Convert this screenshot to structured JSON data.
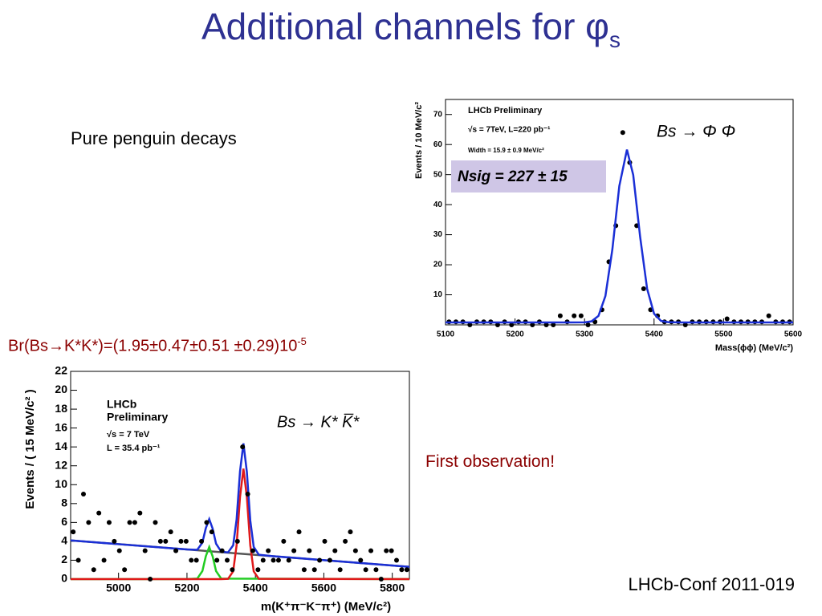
{
  "slide": {
    "title": "Additional channels for φ",
    "title_subscript": "s",
    "subtitle": "Pure penguin decays",
    "branching_ratio": "Br(Bs→K*K*)=(1.95±0.47±0.51 ±0.29)10",
    "branching_ratio_exponent": "-5",
    "note": "First observation!",
    "reference": "LHCb-Conf 2011-019"
  },
  "chart_data": [
    {
      "type": "scatter",
      "xlabel": "Mass(ϕϕ) (MeV/c²)",
      "ylabel": "Events / 10 MeV/c²",
      "xlim": [
        5100,
        5600
      ],
      "ylim": [
        0,
        75
      ],
      "xticks": [
        5100,
        5200,
        5300,
        5400,
        5500,
        5600
      ],
      "yticks": [
        10,
        20,
        30,
        40,
        50,
        60,
        70
      ],
      "annotations": [
        "LHCb Preliminary",
        "√s = 7TeV, L=220 pb⁻¹",
        "Width = 15.9 ± 0.9 MeV/c²",
        "Bs → Φ Φ",
        "Nsig = 227 ± 15"
      ],
      "series": [
        {
          "mode": "markers",
          "color": "#000000",
          "x": [
            5105,
            5115,
            5125,
            5135,
            5145,
            5155,
            5165,
            5175,
            5185,
            5195,
            5205,
            5215,
            5225,
            5235,
            5245,
            5255,
            5265,
            5275,
            5285,
            5295,
            5305,
            5315,
            5325,
            5335,
            5345,
            5355,
            5365,
            5375,
            5385,
            5395,
            5405,
            5415,
            5425,
            5435,
            5445,
            5455,
            5465,
            5475,
            5485,
            5495,
            5505,
            5515,
            5525,
            5535,
            5545,
            5555,
            5565,
            5575,
            5585,
            5595
          ],
          "values": [
            1,
            1,
            1,
            0,
            1,
            1,
            1,
            0,
            1,
            0,
            1,
            1,
            0,
            1,
            0,
            0,
            3,
            1,
            3,
            3,
            0,
            1,
            5,
            21,
            33,
            64,
            54,
            33,
            12,
            5,
            3,
            1,
            1,
            1,
            0,
            1,
            1,
            1,
            1,
            1,
            2,
            1,
            1,
            1,
            1,
            1,
            3,
            1,
            1,
            1
          ]
        },
        {
          "mode": "line",
          "color": "#1a2fd6",
          "x": [
            5100,
            5200,
            5280,
            5300,
            5310,
            5320,
            5330,
            5340,
            5350,
            5361,
            5370,
            5380,
            5390,
            5400,
            5410,
            5420,
            5440,
            5500,
            5600
          ],
          "values": [
            0.8,
            0.8,
            0.8,
            0.84,
            1.16,
            2.96,
            9.6,
            25.1,
            46.2,
            58.3,
            49.9,
            29.2,
            12.0,
            3.7,
            1.3,
            0.9,
            0.8,
            0.8,
            0.8
          ]
        }
      ]
    },
    {
      "type": "scatter",
      "xlabel": "m(K⁺π⁻K⁻π⁺)  (MeV/c²)",
      "ylabel": "Events / ( 15 MeV/c² )",
      "xlim": [
        4860,
        5850
      ],
      "ylim": [
        0,
        22
      ],
      "xticks": [
        5000,
        5200,
        5400,
        5600,
        5800
      ],
      "yticks": [
        0,
        2,
        4,
        6,
        8,
        10,
        12,
        14,
        16,
        18,
        20,
        22
      ],
      "annotations": [
        "LHCb",
        "Preliminary",
        "√s = 7 TeV",
        "L = 35.4 pb⁻¹",
        "Bs → K* K̅*"
      ],
      "series": [
        {
          "mode": "line",
          "color": "#555555",
          "x": [
            4860,
            5850
          ],
          "values": [
            4.1,
            1.3
          ]
        },
        {
          "mode": "line",
          "color": "#22cc22",
          "x": [
            4860,
            5200,
            5230,
            5245,
            5255,
            5265,
            5275,
            5285,
            5300,
            5850
          ],
          "values": [
            0,
            0,
            0.05,
            0.85,
            2.41,
            3.4,
            2.41,
            0.85,
            0.05,
            0
          ]
        },
        {
          "mode": "line",
          "color": "#e0191a",
          "x": [
            4860,
            5300,
            5320,
            5335,
            5345,
            5355,
            5365,
            5375,
            5385,
            5395,
            5410,
            5850
          ],
          "values": [
            0,
            0,
            0.03,
            0.82,
            3.58,
            8.7,
            11.7,
            8.7,
            3.58,
            0.82,
            0.03,
            0
          ]
        },
        {
          "mode": "line",
          "color": "#1a2fd6",
          "x": [
            4860,
            5000,
            5150,
            5200,
            5230,
            5245,
            5255,
            5265,
            5275,
            5285,
            5300,
            5320,
            5335,
            5345,
            5355,
            5365,
            5375,
            5385,
            5395,
            5410,
            5450,
            5600,
            5850
          ],
          "values": [
            4.1,
            3.7,
            3.28,
            3.14,
            3.1,
            3.86,
            5.39,
            6.35,
            5.34,
            3.75,
            2.91,
            2.83,
            3.58,
            6.31,
            11.4,
            14.37,
            11.35,
            6.2,
            3.41,
            2.58,
            2.43,
            2.01,
            1.3
          ]
        },
        {
          "mode": "markers",
          "color": "#000000",
          "x": [
            4867.5,
            4882.5,
            4897.5,
            4912.5,
            4927.5,
            4942.5,
            4957.5,
            4972.5,
            4987.5,
            5002.5,
            5017.5,
            5032.5,
            5047.5,
            5062.5,
            5077.5,
            5092.5,
            5107.5,
            5122.5,
            5137.5,
            5152.5,
            5167.5,
            5182.5,
            5197.5,
            5212.5,
            5227.5,
            5242.5,
            5257.5,
            5272.5,
            5287.5,
            5302.5,
            5317.5,
            5332.5,
            5347.5,
            5362.5,
            5377.5,
            5392.5,
            5407.5,
            5422.5,
            5437.5,
            5452.5,
            5467.5,
            5482.5,
            5497.5,
            5512.5,
            5527.5,
            5542.5,
            5557.5,
            5572.5,
            5587.5,
            5602.5,
            5617.5,
            5632.5,
            5647.5,
            5662.5,
            5677.5,
            5692.5,
            5707.5,
            5722.5,
            5737.5,
            5752.5,
            5767.5,
            5782.5,
            5797.5,
            5812.5,
            5827.5,
            5842.5
          ],
          "values": [
            5,
            2,
            9,
            6,
            1,
            7,
            2,
            6,
            4,
            3,
            1,
            6,
            6,
            7,
            3,
            0,
            6,
            4,
            4,
            5,
            3,
            4,
            4,
            2,
            2,
            4,
            6,
            5,
            2,
            3,
            2,
            1,
            4,
            14,
            9,
            3,
            1,
            2,
            3,
            2,
            2,
            4,
            2,
            3,
            5,
            1,
            3,
            1,
            2,
            4,
            2,
            3,
            1,
            4,
            5,
            3,
            2,
            1,
            3,
            1,
            0,
            3,
            3,
            2,
            1,
            1
          ]
        }
      ]
    }
  ]
}
